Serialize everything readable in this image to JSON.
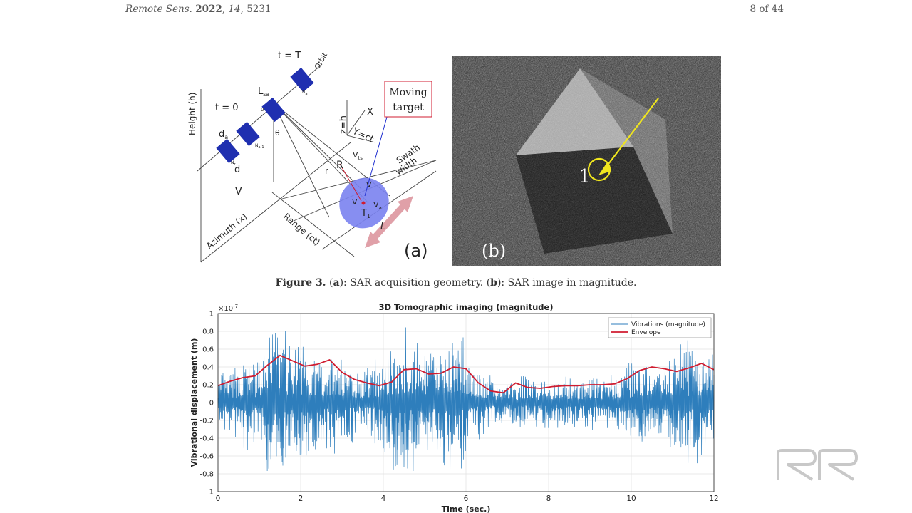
{
  "header": {
    "journal": "Remote Sens.",
    "year": "2022",
    "volume": "14",
    "article": ", 5231",
    "page": "8 of 44"
  },
  "figure3": {
    "panel_a": {
      "label": "(a)",
      "t_top": "t = T",
      "t_zero": "t = 0",
      "orbit": "Orbit",
      "height": "Height (h)",
      "lsa": "L",
      "lsa_sub": "sa",
      "theta": "θ",
      "da": "d",
      "da_sub": "a",
      "d": "d",
      "v": "V",
      "R": "R",
      "r": "r",
      "z": "z=h",
      "X": "X",
      "Y": "Y=ct",
      "moving_target": [
        "Moving",
        "target"
      ],
      "swath": [
        "Swath",
        "width"
      ],
      "azimuth": "Azimuth (x)",
      "range": "Range (ct)",
      "vts": "V",
      "vts_sub": "ts",
      "vr": "V",
      "vr_sub": "r",
      "va": "V",
      "va_sub": "a",
      "vv": "V",
      "T1": "T",
      "T1_sub": "1",
      "L": "L",
      "zero": "0",
      "Nr": "N",
      "Nr_sub": "r",
      "Na1": "N",
      "Na1_sub": "a-1",
      "Na": "N",
      "Na_sub": "a"
    },
    "panel_b": {
      "label": "(b)",
      "marker": "1"
    },
    "caption": {
      "prefix": "Figure 3.",
      "text": [
        {
          "t": " (",
          "b": false
        },
        {
          "t": "a",
          "b": true
        },
        {
          "t": "): SAR acquisition geometry. (",
          "b": false
        },
        {
          "t": "b",
          "b": true
        },
        {
          "t": "): SAR image in magnitude.",
          "b": false
        }
      ]
    }
  },
  "chart_data": {
    "type": "line",
    "title": "3D Tomographic imaging (magnitude)",
    "xlabel": "Time (sec.)",
    "ylabel": "Vibrational displacement (m)",
    "y_exponent": "×10",
    "y_exponent_power": "-7",
    "xlim": [
      0,
      12
    ],
    "ylim": [
      -1,
      1
    ],
    "xticks": [
      0,
      2,
      4,
      6,
      8,
      10,
      12
    ],
    "yticks": [
      -1,
      -0.8,
      -0.6,
      -0.4,
      -0.2,
      0,
      0.2,
      0.4,
      0.6,
      0.8,
      1
    ],
    "ytick_labels": [
      "-1",
      "-0.8",
      "-0.6",
      "-0.4",
      "-0.2",
      "0",
      "0.2",
      "0.4",
      "0.6",
      "0.8",
      "1"
    ],
    "grid": true,
    "legend": "top-right",
    "series": [
      {
        "name": "Vibrations (magnitude)",
        "color": "#2e7ebc",
        "style": "dense oscillation",
        "x": [
          0,
          0.5,
          1,
          1.3,
          1.5,
          2,
          2.5,
          3,
          3.5,
          4,
          4.3,
          4.5,
          5,
          5.5,
          5.8,
          6.2,
          6.5,
          7,
          7.5,
          8,
          8.5,
          9,
          9.5,
          10,
          10.5,
          11,
          11.5,
          12
        ],
        "y": [
          0.35,
          0.5,
          0.6,
          0.95,
          0.95,
          0.85,
          0.6,
          0.65,
          0.4,
          0.7,
          0.95,
          0.95,
          0.7,
          0.8,
          0.95,
          0.5,
          0.35,
          0.25,
          0.35,
          0.3,
          0.35,
          0.35,
          0.4,
          0.5,
          0.55,
          0.7,
          0.8,
          0.6
        ]
      },
      {
        "name": "Envelope",
        "color": "#d01c30",
        "x": [
          0,
          0.3,
          0.6,
          0.9,
          1.2,
          1.5,
          1.8,
          2.1,
          2.4,
          2.7,
          3.0,
          3.3,
          3.6,
          3.9,
          4.2,
          4.5,
          4.8,
          5.1,
          5.4,
          5.7,
          6.0,
          6.3,
          6.6,
          6.9,
          7.2,
          7.5,
          7.8,
          8.1,
          8.4,
          8.7,
          9.0,
          9.3,
          9.6,
          9.9,
          10.2,
          10.5,
          10.8,
          11.1,
          11.4,
          11.7,
          12
        ],
        "y": [
          0.19,
          0.24,
          0.28,
          0.3,
          0.42,
          0.53,
          0.47,
          0.41,
          0.43,
          0.48,
          0.34,
          0.26,
          0.22,
          0.19,
          0.23,
          0.37,
          0.38,
          0.32,
          0.33,
          0.4,
          0.38,
          0.22,
          0.13,
          0.11,
          0.22,
          0.17,
          0.16,
          0.18,
          0.19,
          0.19,
          0.2,
          0.2,
          0.21,
          0.27,
          0.36,
          0.4,
          0.38,
          0.35,
          0.39,
          0.44,
          0.37
        ]
      }
    ]
  },
  "logo": {
    "name": "RR"
  }
}
